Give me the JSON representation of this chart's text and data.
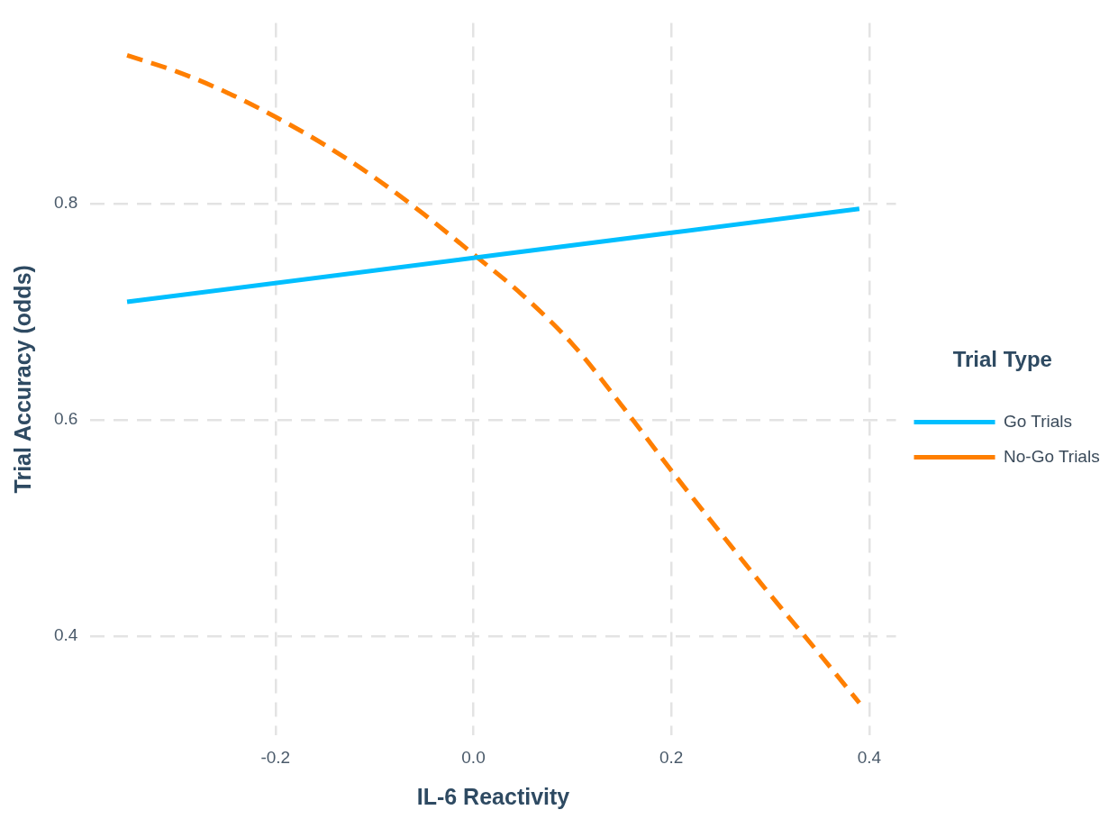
{
  "chart_data": {
    "type": "line",
    "xlabel": "IL-6 Reactivity",
    "ylabel": "Trial Accuracy (odds)",
    "legend_title": "Trial Type",
    "legend": "right",
    "grid": true,
    "marker": "none",
    "xlim": [
      -0.387,
      0.427
    ],
    "xticks": [
      {
        "value": -0.2,
        "label": "-0.2"
      },
      {
        "value": 0,
        "label": "0.0"
      },
      {
        "value": 0.2,
        "label": "0.2"
      },
      {
        "value": 0.4,
        "label": "0.4"
      }
    ],
    "ylim": [
      0.308,
      0.967
    ],
    "yticks": [
      {
        "value": 0.4,
        "label": "0.4"
      },
      {
        "value": 0.6,
        "label": "0.6"
      },
      {
        "value": 0.8,
        "label": "0.8"
      }
    ],
    "series": [
      {
        "name": "Go Trials",
        "color": "#00bfff",
        "line_style": "solid",
        "x": [
          -0.35,
          0.39
        ],
        "values": [
          0.709,
          0.795
        ]
      },
      {
        "name": "No-Go Trials",
        "color": "#ff7f00",
        "line_style": "dashed",
        "x": [
          -0.35,
          -0.3,
          -0.25,
          -0.2,
          -0.15,
          -0.1,
          -0.05,
          0,
          0.05,
          0.1,
          0.15,
          0.2,
          0.25,
          0.3,
          0.35,
          0.39
        ],
        "values": [
          0.937,
          0.922,
          0.903,
          0.88,
          0.854,
          0.824,
          0.79,
          0.753,
          0.715,
          0.67,
          0.613,
          0.553,
          0.495,
          0.438,
          0.383,
          0.338
        ]
      }
    ]
  }
}
